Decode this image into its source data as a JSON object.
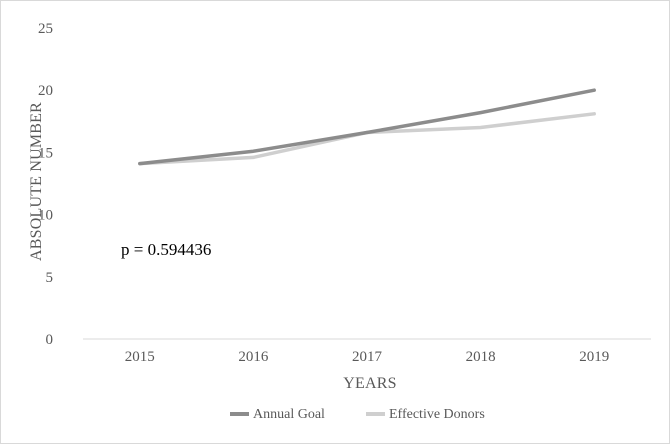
{
  "chart_data": {
    "type": "line",
    "title": "",
    "xlabel": "YEARS",
    "ylabel": "ABSOLUTE NUMBER",
    "categories": [
      "2015",
      "2016",
      "2017",
      "2018",
      "2019"
    ],
    "ylim": [
      0,
      25
    ],
    "yticks": [
      "0",
      "5",
      "10",
      "15",
      "20",
      "25"
    ],
    "grid": false,
    "legend_position": "bottom",
    "series": [
      {
        "name": "Annual Goal",
        "values": [
          14.1,
          15.1,
          16.6,
          18.2,
          20.0
        ],
        "color": "#8c8c8c"
      },
      {
        "name": "Effective Donors",
        "values": [
          14.1,
          14.6,
          16.6,
          17.0,
          18.1
        ],
        "color": "#cfcfcf"
      }
    ],
    "annotations": [
      {
        "text": "p = 0.594436"
      }
    ]
  }
}
